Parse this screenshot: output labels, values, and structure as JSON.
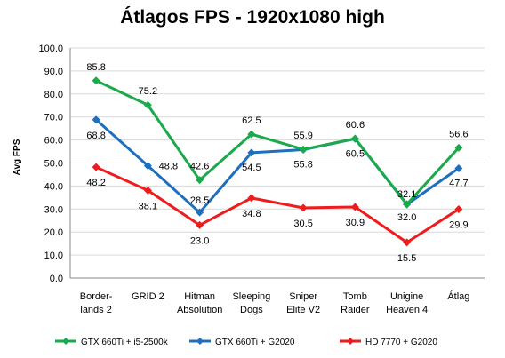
{
  "chart_data": {
    "type": "line",
    "title": "Átlagos FPS - 1920x1080 high",
    "ylabel": "Avg FPS",
    "xlabel": "",
    "ylim": [
      0,
      100
    ],
    "yticks": [
      "0.0",
      "10.0",
      "20.0",
      "30.0",
      "40.0",
      "50.0",
      "60.0",
      "70.0",
      "80.0",
      "90.0",
      "100.0"
    ],
    "categories": [
      [
        "Border-",
        "lands 2"
      ],
      [
        "GRID 2"
      ],
      [
        "Hitman",
        "Absolution"
      ],
      [
        "Sleeping",
        "Dogs"
      ],
      [
        "Sniper",
        "Elite V2"
      ],
      [
        "Tomb",
        "Raider"
      ],
      [
        "Unigine",
        "Heaven 4"
      ],
      [
        "Átlag"
      ]
    ],
    "grid": true,
    "legend_position": "bottom",
    "series": [
      {
        "name": "GTX 660Ti + i5-2500k",
        "color": "#1aaa4b",
        "values": [
          85.8,
          75.2,
          42.6,
          62.5,
          55.9,
          60.6,
          32.1,
          56.6
        ],
        "labels": [
          "85.8",
          "75.2",
          "42.6",
          "62.5",
          "55.9",
          "60.6",
          "32.1",
          "56.6"
        ]
      },
      {
        "name": "GTX 660Ti + G2020",
        "color": "#1f6fbf",
        "values": [
          68.8,
          48.8,
          28.5,
          54.5,
          55.8,
          60.5,
          32.0,
          47.7
        ],
        "labels": [
          "68.8",
          "48.8",
          "28.5",
          "54.5",
          "55.8",
          "60.5",
          "32.0",
          "47.7"
        ]
      },
      {
        "name": "HD 7770 + G2020",
        "color": "#ee1c1c",
        "values": [
          48.2,
          38.1,
          23.0,
          34.8,
          30.5,
          30.9,
          15.5,
          29.9
        ],
        "labels": [
          "48.2",
          "38.1",
          "23.0",
          "34.8",
          "30.5",
          "30.9",
          "15.5",
          "29.9"
        ]
      }
    ]
  }
}
